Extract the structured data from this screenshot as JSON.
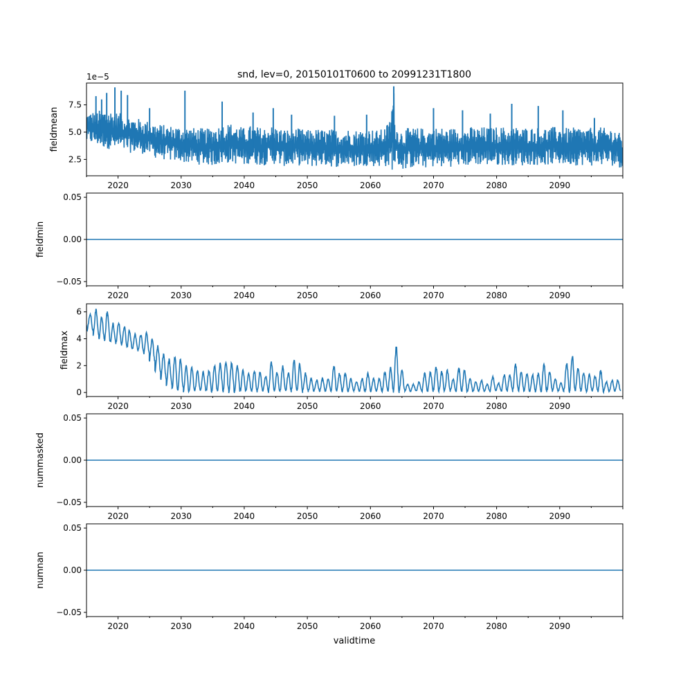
{
  "figure": {
    "title": "snd, lev=0, 20150101T0600 to 20991231T1800",
    "xlabel": "validtime"
  },
  "colors": {
    "line": "#1f77b4",
    "axes": "#000000",
    "background": "#ffffff"
  },
  "chart_data": [
    {
      "type": "line",
      "ylabel": "fieldmean",
      "offset_text": "1e−5",
      "xlim": [
        2015.0,
        2100.0
      ],
      "ylim": [
        1.0,
        9.5
      ],
      "yticks": [
        2.5,
        5.0,
        7.5
      ],
      "ytick_labels": [
        "2.5",
        "5.0",
        "7.5"
      ],
      "xticks": [
        2020,
        2030,
        2040,
        2050,
        2060,
        2070,
        2080,
        2090
      ],
      "xtick_labels": [
        "2020",
        "2030",
        "2040",
        "2050",
        "2060",
        "2070",
        "2080",
        "2090"
      ],
      "series": [
        {
          "name": "fieldmean",
          "x": [
            2015.0,
            2016.0,
            2017.0,
            2018.0,
            2019.0,
            2020.0,
            2021.0,
            2022.0,
            2023.0,
            2024.0,
            2025.0,
            2026.0,
            2027.0,
            2028.0,
            2029.0,
            2030.0,
            2031.0,
            2032.0,
            2033.0,
            2034.0,
            2035.0,
            2036.0,
            2037.0,
            2038.0,
            2039.0,
            2040.0,
            2041.0,
            2042.0,
            2043.0,
            2044.0,
            2045.0,
            2046.0,
            2047.0,
            2048.0,
            2049.0,
            2050.0,
            2051.0,
            2052.0,
            2053.0,
            2054.0,
            2055.0,
            2056.0,
            2057.0,
            2058.0,
            2059.0,
            2060.0,
            2061.0,
            2062.0,
            2063.0,
            2063.7,
            2064.0,
            2065.0,
            2066.0,
            2067.0,
            2068.0,
            2069.0,
            2070.0,
            2071.0,
            2072.0,
            2073.0,
            2074.0,
            2075.0,
            2076.0,
            2077.0,
            2078.0,
            2079.0,
            2080.0,
            2081.0,
            2082.0,
            2083.0,
            2084.0,
            2085.0,
            2086.0,
            2087.0,
            2088.0,
            2089.0,
            2090.0,
            2091.0,
            2092.0,
            2093.0,
            2094.0,
            2095.0,
            2096.0,
            2097.0,
            2098.0,
            2099.0,
            2099.99
          ],
          "y_low": [
            4.0,
            3.9,
            3.7,
            3.5,
            3.4,
            3.3,
            3.2,
            3.1,
            3.1,
            3.0,
            2.9,
            2.6,
            2.5,
            2.4,
            2.3,
            2.3,
            2.1,
            2.1,
            2.0,
            2.0,
            1.9,
            2.0,
            2.1,
            2.2,
            2.0,
            1.9,
            2.2,
            2.0,
            1.9,
            2.2,
            2.0,
            1.9,
            1.8,
            2.0,
            1.9,
            1.8,
            1.8,
            1.9,
            1.9,
            1.8,
            1.8,
            1.9,
            1.8,
            1.8,
            1.9,
            1.9,
            1.8,
            1.9,
            1.7,
            1.4,
            2.2,
            1.5,
            1.7,
            1.7,
            1.8,
            1.7,
            1.8,
            1.7,
            1.9,
            1.8,
            1.9,
            1.9,
            1.9,
            2.0,
            1.9,
            2.0,
            1.9,
            2.0,
            1.9,
            2.0,
            1.9,
            2.0,
            2.0,
            1.9,
            2.0,
            2.0,
            2.0,
            2.0,
            2.0,
            1.9,
            2.0,
            1.9,
            1.9,
            2.0,
            1.9,
            1.9,
            1.6
          ],
          "y_high": [
            6.8,
            6.9,
            7.0,
            7.1,
            7.0,
            6.8,
            6.6,
            6.4,
            6.3,
            6.1,
            6.0,
            5.8,
            5.7,
            5.6,
            5.6,
            5.5,
            5.5,
            5.4,
            5.4,
            5.3,
            5.5,
            5.6,
            5.8,
            5.8,
            5.6,
            5.4,
            5.6,
            5.5,
            5.4,
            5.6,
            5.5,
            5.3,
            5.3,
            5.4,
            5.3,
            5.2,
            5.3,
            5.3,
            5.2,
            5.3,
            5.2,
            5.3,
            5.3,
            5.2,
            5.3,
            5.3,
            5.2,
            5.3,
            6.0,
            9.2,
            5.6,
            5.2,
            5.4,
            5.4,
            5.4,
            5.3,
            5.4,
            5.5,
            5.3,
            5.4,
            5.4,
            5.3,
            5.5,
            5.4,
            5.5,
            5.4,
            5.5,
            5.5,
            5.4,
            5.5,
            5.4,
            5.5,
            5.4,
            5.5,
            5.4,
            5.5,
            5.5,
            5.4,
            5.4,
            5.5,
            5.4,
            5.4,
            5.5,
            5.4,
            5.4,
            5.3,
            4.5
          ],
          "spikes": [
            {
              "x": 2016.5,
              "y": 8.3
            },
            {
              "x": 2017.4,
              "y": 8.0
            },
            {
              "x": 2018.2,
              "y": 8.6
            },
            {
              "x": 2019.5,
              "y": 9.1
            },
            {
              "x": 2020.5,
              "y": 8.8
            },
            {
              "x": 2021.5,
              "y": 8.4
            },
            {
              "x": 2025.0,
              "y": 7.2
            },
            {
              "x": 2030.6,
              "y": 8.8
            },
            {
              "x": 2036.5,
              "y": 7.8
            },
            {
              "x": 2041.4,
              "y": 6.8
            },
            {
              "x": 2044.6,
              "y": 7.2
            },
            {
              "x": 2047.5,
              "y": 6.6
            },
            {
              "x": 2054.3,
              "y": 6.5
            },
            {
              "x": 2059.4,
              "y": 6.6
            },
            {
              "x": 2063.7,
              "y": 9.2
            },
            {
              "x": 2070.0,
              "y": 7.2
            },
            {
              "x": 2074.6,
              "y": 7.0
            },
            {
              "x": 2079.0,
              "y": 6.7
            },
            {
              "x": 2082.4,
              "y": 7.6
            },
            {
              "x": 2086.6,
              "y": 7.4
            },
            {
              "x": 2090.5,
              "y": 7.0
            },
            {
              "x": 2095.5,
              "y": 6.3
            }
          ]
        }
      ]
    },
    {
      "type": "line",
      "ylabel": "fieldmin",
      "xlim": [
        2015.0,
        2100.0
      ],
      "ylim": [
        -0.055,
        0.055
      ],
      "yticks": [
        -0.05,
        0.0,
        0.05
      ],
      "ytick_labels": [
        "−0.05",
        "0.00",
        "0.05"
      ],
      "xticks": [
        2020,
        2030,
        2040,
        2050,
        2060,
        2070,
        2080,
        2090
      ],
      "xtick_labels": [
        "2020",
        "2030",
        "2040",
        "2050",
        "2060",
        "2070",
        "2080",
        "2090"
      ],
      "series": [
        {
          "name": "fieldmin",
          "x": [
            2015.0,
            2099.99
          ],
          "y": [
            0.0,
            0.0
          ]
        }
      ]
    },
    {
      "type": "line",
      "ylabel": "fieldmax",
      "xlim": [
        2015.0,
        2100.0
      ],
      "ylim": [
        -0.3,
        6.6
      ],
      "yticks": [
        0,
        2,
        4,
        6
      ],
      "ytick_labels": [
        "0",
        "2",
        "4",
        "6"
      ],
      "xticks": [
        2020,
        2030,
        2040,
        2050,
        2060,
        2070,
        2080,
        2090
      ],
      "xtick_labels": [
        "2020",
        "2030",
        "2040",
        "2050",
        "2060",
        "2070",
        "2080",
        "2090"
      ],
      "series": [
        {
          "name": "fieldmax",
          "peak_years": [
            2015.6,
            2016.5,
            2017.4,
            2018.3,
            2019.2,
            2020.1,
            2021.0,
            2021.8,
            2022.7,
            2023.6,
            2024.5,
            2025.4,
            2026.3,
            2027.2,
            2028.1,
            2029.0,
            2029.9,
            2030.8,
            2031.7,
            2032.6,
            2033.5,
            2034.4,
            2035.3,
            2036.2,
            2037.1,
            2038.0,
            2038.9,
            2039.8,
            2040.7,
            2041.6,
            2042.5,
            2043.4,
            2044.3,
            2045.2,
            2046.1,
            2047.0,
            2047.9,
            2048.8,
            2049.7,
            2050.6,
            2051.5,
            2052.4,
            2053.3,
            2054.2,
            2055.1,
            2056.0,
            2056.9,
            2057.8,
            2058.7,
            2059.6,
            2060.5,
            2061.4,
            2062.3,
            2063.2,
            2064.1,
            2065.0,
            2065.9,
            2066.8,
            2067.7,
            2068.6,
            2069.5,
            2070.4,
            2071.3,
            2072.2,
            2073.1,
            2074.0,
            2074.9,
            2075.8,
            2076.7,
            2077.6,
            2078.5,
            2079.4,
            2080.3,
            2081.2,
            2082.1,
            2083.0,
            2083.9,
            2084.8,
            2085.7,
            2086.6,
            2087.5,
            2088.4,
            2089.3,
            2090.2,
            2091.1,
            2092.0,
            2092.9,
            2093.8,
            2094.7,
            2095.6,
            2096.5,
            2097.4,
            2098.3,
            2099.2
          ],
          "peak_values": [
            5.8,
            6.1,
            5.6,
            6.0,
            5.1,
            5.2,
            4.9,
            4.6,
            4.3,
            4.3,
            4.4,
            4.0,
            3.4,
            2.8,
            2.4,
            2.6,
            2.5,
            1.9,
            1.8,
            1.6,
            1.5,
            1.6,
            2.0,
            2.2,
            2.3,
            2.2,
            2.0,
            1.6,
            1.4,
            1.6,
            1.5,
            1.2,
            2.2,
            1.5,
            1.9,
            1.4,
            2.3,
            2.1,
            1.4,
            1.0,
            0.9,
            1.0,
            1.0,
            2.0,
            1.4,
            1.4,
            1.0,
            0.8,
            1.0,
            1.4,
            1.0,
            1.0,
            1.5,
            1.8,
            3.3,
            1.6,
            0.6,
            0.6,
            0.8,
            1.4,
            1.5,
            1.9,
            1.5,
            1.6,
            1.0,
            1.8,
            1.6,
            1.0,
            0.8,
            0.9,
            0.6,
            1.2,
            0.7,
            1.3,
            1.3,
            2.1,
            1.5,
            1.4,
            1.3,
            1.4,
            2.1,
            1.5,
            1.0,
            0.7,
            2.2,
            2.7,
            1.8,
            1.4,
            1.3,
            1.2,
            1.6,
            0.8,
            0.9,
            0.9
          ],
          "trough_values": [
            4.6,
            4.3,
            4.0,
            3.9,
            3.7,
            3.6,
            3.5,
            3.3,
            3.2,
            3.1,
            2.9,
            2.3,
            1.6,
            1.0,
            0.6,
            0.3,
            0.2,
            0.1,
            0.1,
            0.1,
            0.1,
            0.1,
            0.1,
            0.1,
            0.1,
            0.1,
            0.1,
            0.1,
            0.1,
            0.1,
            0.1,
            0.1,
            0.1,
            0.1,
            0.1,
            0.1,
            0.1,
            0.1,
            0.1,
            0.1,
            0.1,
            0.1,
            0.1,
            0.1,
            0.1,
            0.1,
            0.1,
            0.1,
            0.1,
            0.1,
            0.1,
            0.1,
            0.1,
            0.1,
            0.1,
            0.1,
            0.1,
            0.1,
            0.1,
            0.1,
            0.1,
            0.1,
            0.1,
            0.1,
            0.1,
            0.1,
            0.1,
            0.1,
            0.1,
            0.1,
            0.1,
            0.1,
            0.1,
            0.1,
            0.1,
            0.1,
            0.1,
            0.1,
            0.1,
            0.1,
            0.1,
            0.1,
            0.1,
            0.1,
            0.1,
            0.1,
            0.1,
            0.1,
            0.1,
            0.1,
            0.1,
            0.1,
            0.1,
            0.1
          ]
        }
      ]
    },
    {
      "type": "line",
      "ylabel": "nummasked",
      "xlim": [
        2015.0,
        2100.0
      ],
      "ylim": [
        -0.055,
        0.055
      ],
      "yticks": [
        -0.05,
        0.0,
        0.05
      ],
      "ytick_labels": [
        "−0.05",
        "0.00",
        "0.05"
      ],
      "xticks": [
        2020,
        2030,
        2040,
        2050,
        2060,
        2070,
        2080,
        2090
      ],
      "xtick_labels": [
        "2020",
        "2030",
        "2040",
        "2050",
        "2060",
        "2070",
        "2080",
        "2090"
      ],
      "series": [
        {
          "name": "nummasked",
          "x": [
            2015.0,
            2099.99
          ],
          "y": [
            0.0,
            0.0
          ]
        }
      ]
    },
    {
      "type": "line",
      "ylabel": "numnan",
      "xlim": [
        2015.0,
        2100.0
      ],
      "ylim": [
        -0.055,
        0.055
      ],
      "yticks": [
        -0.05,
        0.0,
        0.05
      ],
      "ytick_labels": [
        "−0.05",
        "0.00",
        "0.05"
      ],
      "xticks": [
        2020,
        2030,
        2040,
        2050,
        2060,
        2070,
        2080,
        2090
      ],
      "xtick_labels": [
        "2020",
        "2030",
        "2040",
        "2050",
        "2060",
        "2070",
        "2080",
        "2090"
      ],
      "series": [
        {
          "name": "numnan",
          "x": [
            2015.0,
            2099.99
          ],
          "y": [
            0.0,
            0.0
          ]
        }
      ]
    }
  ]
}
